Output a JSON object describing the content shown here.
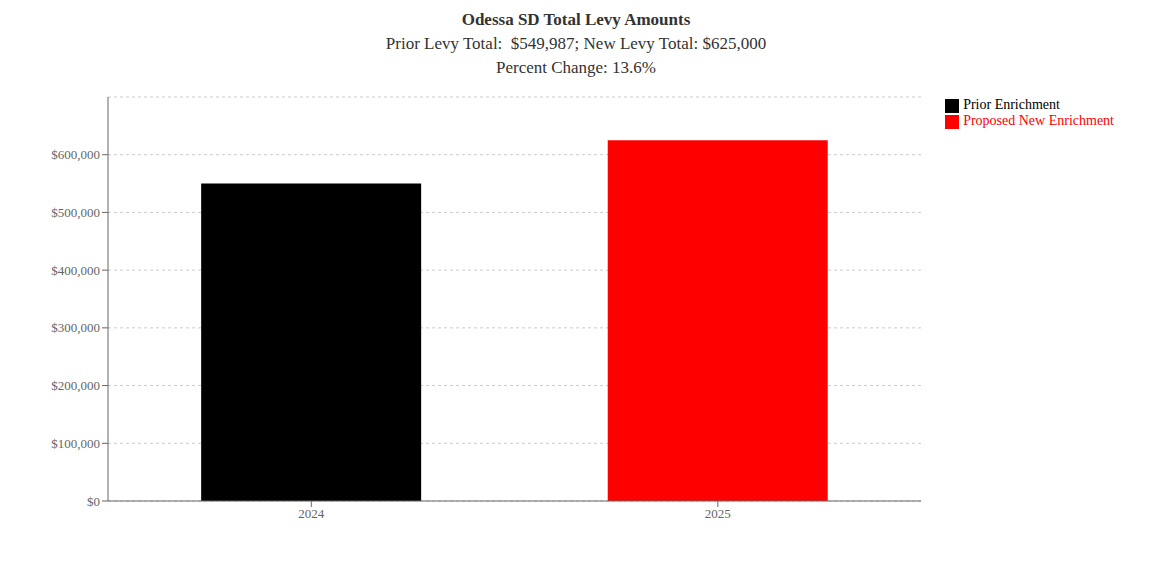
{
  "chart_data": {
    "type": "bar",
    "title": "Odessa SD Total Levy Amounts",
    "subtitle": [
      "Prior Levy Total:  $549,987; New Levy Total: $625,000",
      "Percent Change: 13.6%"
    ],
    "categories": [
      "2024",
      "2025"
    ],
    "series": [
      {
        "name": "Prior Enrichment",
        "color": "#000000",
        "values": [
          549987,
          null
        ]
      },
      {
        "name": "Proposed New Enrichment",
        "color": "#ff0000",
        "values": [
          null,
          625000
        ]
      }
    ],
    "ylim": [
      0,
      700000
    ],
    "yticks": [
      {
        "value": 0,
        "label": "$0"
      },
      {
        "value": 100000,
        "label": "$100,000"
      },
      {
        "value": 200000,
        "label": "$200,000"
      },
      {
        "value": 300000,
        "label": "$300,000"
      },
      {
        "value": 400000,
        "label": "$400,000"
      },
      {
        "value": 500000,
        "label": "$500,000"
      },
      {
        "value": 600000,
        "label": "$600,000"
      }
    ],
    "grid": true,
    "legend": "right"
  }
}
